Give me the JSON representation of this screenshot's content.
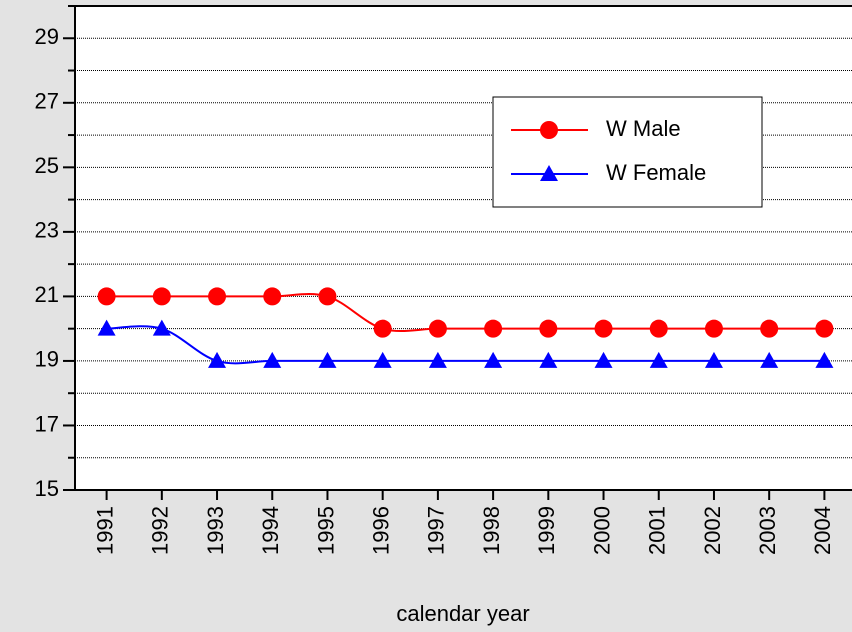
{
  "chart_data": {
    "type": "line",
    "x_label": "calendar year",
    "categories": [
      "1991",
      "1992",
      "1993",
      "1994",
      "1995",
      "1996",
      "1997",
      "1998",
      "1999",
      "2000",
      "2001",
      "2002",
      "2003",
      "2004"
    ],
    "series": [
      {
        "name": "W Male",
        "color": "#ff0000",
        "marker": "circle",
        "values": [
          21,
          21,
          21,
          21,
          21,
          20,
          20,
          20,
          20,
          20,
          20,
          20,
          20,
          20
        ]
      },
      {
        "name": "W Female",
        "color": "#0000ff",
        "marker": "triangle",
        "values": [
          20,
          20,
          19,
          19,
          19,
          19,
          19,
          19,
          19,
          19,
          19,
          19,
          19,
          19
        ]
      }
    ],
    "ylim": [
      15,
      30
    ],
    "yticks": [
      15,
      17,
      19,
      21,
      23,
      25,
      27,
      29
    ],
    "yminor": [
      16,
      18,
      20,
      22,
      24,
      26,
      28,
      30
    ],
    "grid": true,
    "smooth": true,
    "legend": "upper right"
  }
}
